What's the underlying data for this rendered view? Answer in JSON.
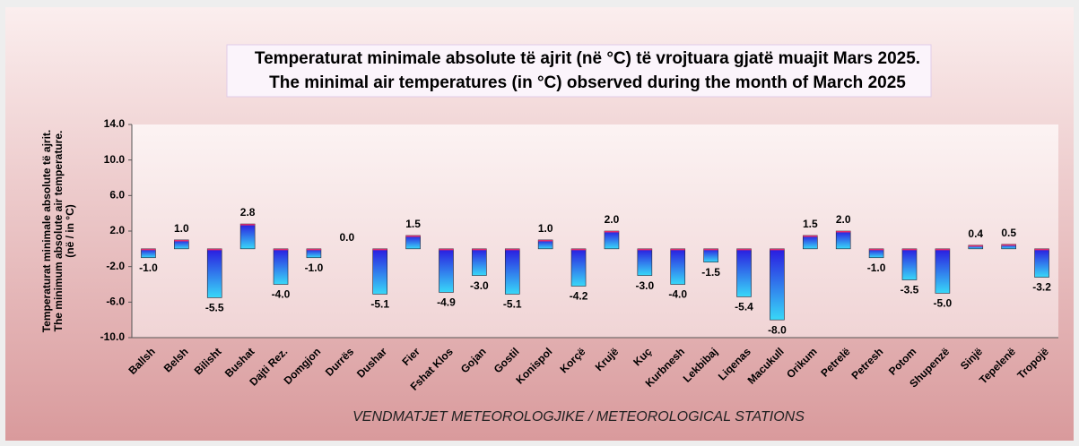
{
  "chart_data": {
    "type": "bar",
    "title": "Temperaturat minimale absolute të ajrit (në °C) të vrojtuara gjatë muajit Mars 2025.",
    "subtitle": "The minimal air temperatures (in °C) observed during the month of March 2025",
    "y_label": [
      "Temperaturat minimale absolute të ajrit.",
      "The minimum absolute air temperature.",
      "(në / in °C)"
    ],
    "x_label": "VENDMATJET  METEOROLOGJIKE / METEOROLOGICAL STATIONS",
    "categories": [
      "Ballsh",
      "Belsh",
      "Bilisht",
      "Bushat",
      "Dajti Rez.",
      "Domgjon",
      "Durrës",
      "Dushar",
      "Fier",
      "Fshat Klos",
      "Gojan",
      "Gostil",
      "Konispol",
      "Korçë",
      "Krujë",
      "Kuç",
      "Kurbnesh",
      "Lekbibaj",
      "Liqenas",
      "Macukull",
      "Orikum",
      "Petrelë",
      "Petresh",
      "Potom",
      "Shupenzë",
      "Sinjë",
      "Tepelenë",
      "Tropojë"
    ],
    "values": [
      -1.0,
      1.0,
      -5.5,
      2.8,
      -4.0,
      -1.0,
      0.0,
      -5.1,
      1.5,
      -4.9,
      -3.0,
      -5.1,
      1.0,
      -4.2,
      2.0,
      -3.0,
      -4.0,
      -1.5,
      -5.4,
      -8.0,
      1.5,
      2.0,
      -1.0,
      -3.5,
      -5.0,
      0.4,
      0.5,
      -3.2
    ],
    "value_labels": [
      "-1.0",
      "1.0",
      "-5.5",
      "2.8",
      "-4.0",
      "-1.0",
      "0.0",
      "-5.1",
      "1.5",
      "-4.9",
      "-3.0",
      "-5.1",
      "1.0",
      "-4.2",
      "2.0",
      "-3.0",
      "-4.0",
      "-1.5",
      "-5.4",
      "-8.0",
      "1.5",
      "2.0",
      "-1.0",
      "-3.5",
      "-5.0",
      "0.4",
      "0.5",
      "-3.2"
    ],
    "ylim": [
      -10,
      14
    ],
    "yticks": [
      {
        "value": 14,
        "label": "14.0"
      },
      {
        "value": 10,
        "label": "10.0"
      },
      {
        "value": 6,
        "label": "6.0"
      },
      {
        "value": 2,
        "label": "2.0"
      },
      {
        "value": -2,
        "label": "-2.0"
      },
      {
        "value": -6,
        "label": "-6.0"
      },
      {
        "value": -10,
        "label": "-10.0"
      }
    ],
    "grid": false
  }
}
